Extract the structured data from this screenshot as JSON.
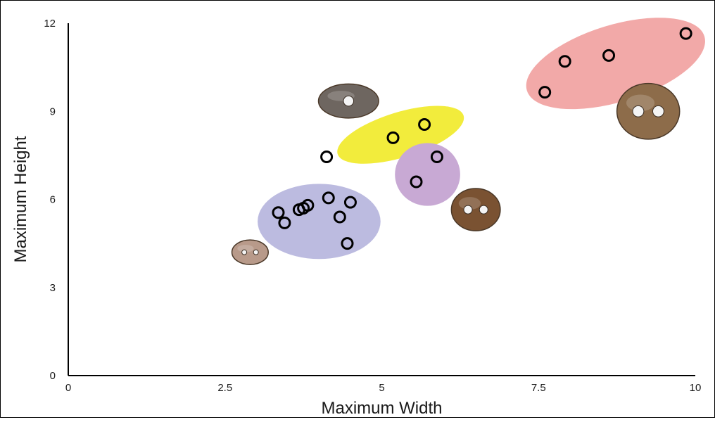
{
  "chart_data": {
    "type": "scatter",
    "title": "",
    "xlabel": "Maximum Width",
    "ylabel": "Maximum Height",
    "xlim": [
      0,
      10
    ],
    "ylim": [
      0,
      12
    ],
    "x_ticks": [
      {
        "value": 0,
        "label": "0"
      },
      {
        "value": 2.5,
        "label": "2.5"
      },
      {
        "value": 5,
        "label": "5"
      },
      {
        "value": 7.5,
        "label": "7.5"
      },
      {
        "value": 10,
        "label": "10"
      }
    ],
    "y_ticks": [
      {
        "value": 0,
        "label": "0"
      },
      {
        "value": 3,
        "label": "3"
      },
      {
        "value": 6,
        "label": "6"
      },
      {
        "value": 9,
        "label": "9"
      },
      {
        "value": 12,
        "label": "12"
      }
    ],
    "grid": false,
    "legend": "none",
    "marker": "open-circle",
    "points": [
      {
        "x": 3.35,
        "y": 5.55
      },
      {
        "x": 3.45,
        "y": 5.2
      },
      {
        "x": 3.68,
        "y": 5.65
      },
      {
        "x": 3.75,
        "y": 5.7
      },
      {
        "x": 3.82,
        "y": 5.8
      },
      {
        "x": 4.15,
        "y": 6.05
      },
      {
        "x": 4.33,
        "y": 5.4
      },
      {
        "x": 4.5,
        "y": 5.9
      },
      {
        "x": 4.45,
        "y": 4.5
      },
      {
        "x": 4.12,
        "y": 7.45
      },
      {
        "x": 5.18,
        "y": 8.1
      },
      {
        "x": 5.68,
        "y": 8.55
      },
      {
        "x": 5.55,
        "y": 6.6
      },
      {
        "x": 5.88,
        "y": 7.45
      },
      {
        "x": 7.6,
        "y": 9.65
      },
      {
        "x": 7.92,
        "y": 10.7
      },
      {
        "x": 8.62,
        "y": 10.9
      },
      {
        "x": 9.85,
        "y": 11.65
      }
    ],
    "groups": [
      {
        "color": "#bcbbe0",
        "cx": 4.0,
        "cy": 5.25,
        "rx": 0.98,
        "ry": 1.28,
        "rotation": 0
      },
      {
        "color": "#f2ec3c",
        "cx": 5.3,
        "cy": 8.2,
        "rx": 1.05,
        "ry": 0.77,
        "rotation": -17
      },
      {
        "color": "#c8a9d4",
        "cx": 5.73,
        "cy": 6.85,
        "rx": 0.52,
        "ry": 1.07,
        "rotation": 0
      },
      {
        "color": "#f2a9a8",
        "cx": 8.73,
        "cy": 10.63,
        "rx": 1.48,
        "ry": 1.31,
        "rotation": -17
      }
    ],
    "images": [
      {
        "name": "small-two-hole-bead-image",
        "x": 2.9,
        "y": 4.2,
        "rx": 0.29,
        "ry": 0.42,
        "color": "#b89a8a",
        "holes": 2
      },
      {
        "name": "irregular-one-hole-bead-image",
        "x": 4.47,
        "y": 9.35,
        "rx": 0.48,
        "ry": 0.58,
        "color": "#6e6660",
        "holes": 1
      },
      {
        "name": "brown-two-hole-bead-image",
        "x": 6.5,
        "y": 5.65,
        "rx": 0.39,
        "ry": 0.72,
        "color": "#7a5232",
        "holes": 2
      },
      {
        "name": "large-two-hole-bead-image",
        "x": 9.25,
        "y": 9.0,
        "rx": 0.5,
        "ry": 0.95,
        "color": "#8d6c4a",
        "holes": 2
      }
    ]
  }
}
